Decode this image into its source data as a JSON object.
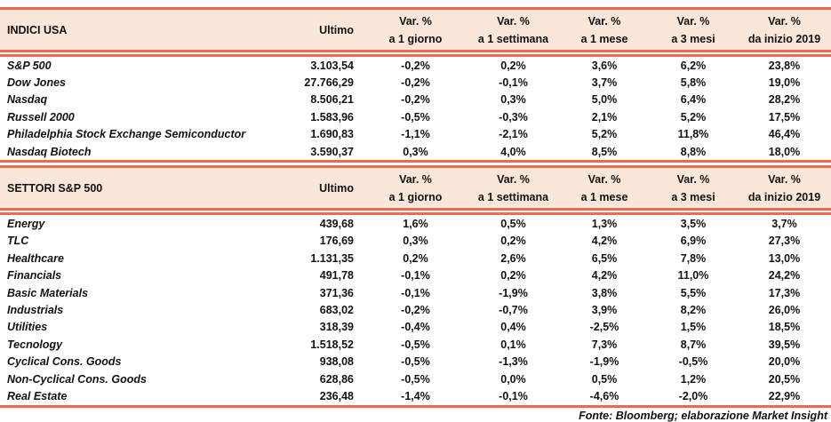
{
  "columns": {
    "ultimo": "Ultimo",
    "var_label": "Var. %",
    "periods": [
      "a 1 giorno",
      "a 1 settimana",
      "a 1 mese",
      "a 3 mesi",
      "da inizio 2019"
    ]
  },
  "tables": [
    {
      "title": "INDICI USA",
      "rows": [
        {
          "name": "S&P 500",
          "ultimo": "3.103,54",
          "vars": [
            "-0,2%",
            "0,2%",
            "3,6%",
            "6,2%",
            "23,8%"
          ]
        },
        {
          "name": "Dow Jones",
          "ultimo": "27.766,29",
          "vars": [
            "-0,2%",
            "-0,1%",
            "3,7%",
            "5,8%",
            "19,0%"
          ]
        },
        {
          "name": "Nasdaq",
          "ultimo": "8.506,21",
          "vars": [
            "-0,2%",
            "0,3%",
            "5,0%",
            "6,4%",
            "28,2%"
          ]
        },
        {
          "name": "Russell 2000",
          "ultimo": "1.583,96",
          "vars": [
            "-0,5%",
            "-0,3%",
            "2,1%",
            "5,2%",
            "17,5%"
          ]
        },
        {
          "name": "Philadelphia Stock Exchange Semiconductor",
          "ultimo": "1.690,83",
          "vars": [
            "-1,1%",
            "-2,1%",
            "5,2%",
            "11,8%",
            "46,4%"
          ]
        },
        {
          "name": "Nasdaq Biotech",
          "ultimo": "3.590,37",
          "vars": [
            "0,3%",
            "4,0%",
            "8,5%",
            "8,8%",
            "18,0%"
          ]
        }
      ]
    },
    {
      "title": "SETTORI S&P 500",
      "rows": [
        {
          "name": "Energy",
          "ultimo": "439,68",
          "vars": [
            "1,6%",
            "0,5%",
            "1,3%",
            "3,5%",
            "3,7%"
          ]
        },
        {
          "name": "TLC",
          "ultimo": "176,69",
          "vars": [
            "0,3%",
            "0,2%",
            "4,2%",
            "6,9%",
            "27,3%"
          ]
        },
        {
          "name": "Healthcare",
          "ultimo": "1.131,35",
          "vars": [
            "0,2%",
            "2,6%",
            "6,5%",
            "7,8%",
            "13,0%"
          ]
        },
        {
          "name": "Financials",
          "ultimo": "491,78",
          "vars": [
            "-0,1%",
            "0,2%",
            "4,2%",
            "11,0%",
            "24,2%"
          ]
        },
        {
          "name": "Basic Materials",
          "ultimo": "371,36",
          "vars": [
            "-0,1%",
            "-1,9%",
            "3,8%",
            "5,5%",
            "17,3%"
          ]
        },
        {
          "name": "Industrials",
          "ultimo": "683,02",
          "vars": [
            "-0,2%",
            "-0,7%",
            "3,9%",
            "8,2%",
            "26,0%"
          ]
        },
        {
          "name": "Utilities",
          "ultimo": "318,39",
          "vars": [
            "-0,4%",
            "0,4%",
            "-2,5%",
            "1,5%",
            "18,5%"
          ]
        },
        {
          "name": "Tecnology",
          "ultimo": "1.518,52",
          "vars": [
            "-0,5%",
            "0,1%",
            "7,3%",
            "8,7%",
            "39,5%"
          ]
        },
        {
          "name": "Cyclical Cons. Goods",
          "ultimo": "938,08",
          "vars": [
            "-0,5%",
            "-1,3%",
            "-1,9%",
            "-0,5%",
            "20,0%"
          ]
        },
        {
          "name": "Non-Cyclical Cons. Goods",
          "ultimo": "628,86",
          "vars": [
            "-0,5%",
            "0,0%",
            "0,5%",
            "1,2%",
            "20,5%"
          ]
        },
        {
          "name": "Real Estate",
          "ultimo": "236,48",
          "vars": [
            "-1,4%",
            "-0,1%",
            "-4,6%",
            "-2,0%",
            "22,9%"
          ]
        }
      ]
    }
  ],
  "footer": "Fonte: Bloomberg; elaborazione Market Insight",
  "colors": {
    "accent": "#ED6A50",
    "header_bg": "#FAE7D9",
    "text": "#121212"
  }
}
